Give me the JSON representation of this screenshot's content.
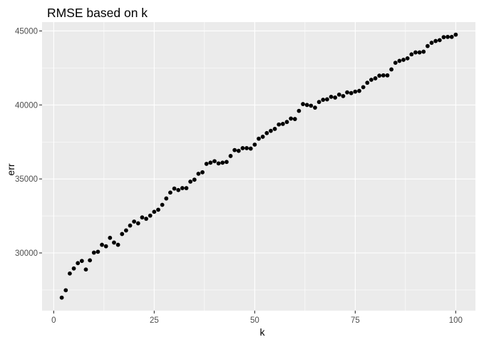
{
  "chart_data": {
    "type": "scatter",
    "title": "RMSE based on k",
    "xlabel": "k",
    "ylabel": "err",
    "xlim": [
      -2.9,
      104.9
    ],
    "ylim": [
      26100,
      45600
    ],
    "x_ticks": [
      0,
      25,
      50,
      75,
      100
    ],
    "x_tick_labels": [
      "0",
      "25",
      "50",
      "75",
      "100"
    ],
    "y_ticks": [
      30000,
      35000,
      40000,
      45000
    ],
    "y_tick_labels": [
      "30000",
      "35000",
      "40000",
      "45000"
    ],
    "x_minor": [
      12.5,
      37.5,
      62.5,
      87.5
    ],
    "y_minor": [
      27500,
      32500,
      37500,
      42500
    ],
    "grid": true,
    "legend": "none",
    "colors": {
      "panel": "#EBEBEB",
      "grid": "#FFFFFF",
      "point": "#000000"
    },
    "points": [
      {
        "x": 2,
        "y": 26980
      },
      {
        "x": 3,
        "y": 27480
      },
      {
        "x": 4,
        "y": 28610
      },
      {
        "x": 5,
        "y": 28950
      },
      {
        "x": 6,
        "y": 29310
      },
      {
        "x": 7,
        "y": 29460
      },
      {
        "x": 8,
        "y": 28880
      },
      {
        "x": 9,
        "y": 29500
      },
      {
        "x": 10,
        "y": 30020
      },
      {
        "x": 11,
        "y": 30080
      },
      {
        "x": 12,
        "y": 30550
      },
      {
        "x": 13,
        "y": 30450
      },
      {
        "x": 14,
        "y": 31020
      },
      {
        "x": 15,
        "y": 30700
      },
      {
        "x": 16,
        "y": 30550
      },
      {
        "x": 17,
        "y": 31280
      },
      {
        "x": 18,
        "y": 31520
      },
      {
        "x": 19,
        "y": 31850
      },
      {
        "x": 20,
        "y": 32120
      },
      {
        "x": 21,
        "y": 32000
      },
      {
        "x": 22,
        "y": 32400
      },
      {
        "x": 23,
        "y": 32310
      },
      {
        "x": 24,
        "y": 32520
      },
      {
        "x": 25,
        "y": 32780
      },
      {
        "x": 26,
        "y": 32920
      },
      {
        "x": 27,
        "y": 33250
      },
      {
        "x": 28,
        "y": 33680
      },
      {
        "x": 29,
        "y": 34080
      },
      {
        "x": 30,
        "y": 34350
      },
      {
        "x": 31,
        "y": 34250
      },
      {
        "x": 32,
        "y": 34380
      },
      {
        "x": 33,
        "y": 34380
      },
      {
        "x": 34,
        "y": 34820
      },
      {
        "x": 35,
        "y": 34950
      },
      {
        "x": 36,
        "y": 35350
      },
      {
        "x": 37,
        "y": 35450
      },
      {
        "x": 38,
        "y": 36020
      },
      {
        "x": 39,
        "y": 36100
      },
      {
        "x": 40,
        "y": 36200
      },
      {
        "x": 41,
        "y": 36050
      },
      {
        "x": 42,
        "y": 36100
      },
      {
        "x": 43,
        "y": 36150
      },
      {
        "x": 44,
        "y": 36550
      },
      {
        "x": 45,
        "y": 36950
      },
      {
        "x": 46,
        "y": 36900
      },
      {
        "x": 47,
        "y": 37080
      },
      {
        "x": 48,
        "y": 37080
      },
      {
        "x": 49,
        "y": 37050
      },
      {
        "x": 50,
        "y": 37320
      },
      {
        "x": 51,
        "y": 37720
      },
      {
        "x": 52,
        "y": 37850
      },
      {
        "x": 53,
        "y": 38100
      },
      {
        "x": 54,
        "y": 38250
      },
      {
        "x": 55,
        "y": 38380
      },
      {
        "x": 56,
        "y": 38680
      },
      {
        "x": 57,
        "y": 38720
      },
      {
        "x": 58,
        "y": 38850
      },
      {
        "x": 59,
        "y": 39080
      },
      {
        "x": 60,
        "y": 39050
      },
      {
        "x": 61,
        "y": 39600
      },
      {
        "x": 62,
        "y": 40060
      },
      {
        "x": 63,
        "y": 40000
      },
      {
        "x": 64,
        "y": 39950
      },
      {
        "x": 65,
        "y": 39820
      },
      {
        "x": 66,
        "y": 40200
      },
      {
        "x": 67,
        "y": 40350
      },
      {
        "x": 68,
        "y": 40380
      },
      {
        "x": 69,
        "y": 40550
      },
      {
        "x": 70,
        "y": 40500
      },
      {
        "x": 71,
        "y": 40700
      },
      {
        "x": 72,
        "y": 40600
      },
      {
        "x": 73,
        "y": 40850
      },
      {
        "x": 74,
        "y": 40800
      },
      {
        "x": 75,
        "y": 40900
      },
      {
        "x": 76,
        "y": 40950
      },
      {
        "x": 77,
        "y": 41200
      },
      {
        "x": 78,
        "y": 41500
      },
      {
        "x": 79,
        "y": 41700
      },
      {
        "x": 80,
        "y": 41800
      },
      {
        "x": 81,
        "y": 41980
      },
      {
        "x": 82,
        "y": 42000
      },
      {
        "x": 83,
        "y": 42000
      },
      {
        "x": 84,
        "y": 42400
      },
      {
        "x": 85,
        "y": 42850
      },
      {
        "x": 86,
        "y": 42980
      },
      {
        "x": 87,
        "y": 43050
      },
      {
        "x": 88,
        "y": 43150
      },
      {
        "x": 89,
        "y": 43420
      },
      {
        "x": 90,
        "y": 43550
      },
      {
        "x": 91,
        "y": 43550
      },
      {
        "x": 92,
        "y": 43600
      },
      {
        "x": 93,
        "y": 43980
      },
      {
        "x": 94,
        "y": 44200
      },
      {
        "x": 95,
        "y": 44320
      },
      {
        "x": 96,
        "y": 44380
      },
      {
        "x": 97,
        "y": 44580
      },
      {
        "x": 98,
        "y": 44600
      },
      {
        "x": 99,
        "y": 44600
      },
      {
        "x": 100,
        "y": 44750
      }
    ]
  }
}
